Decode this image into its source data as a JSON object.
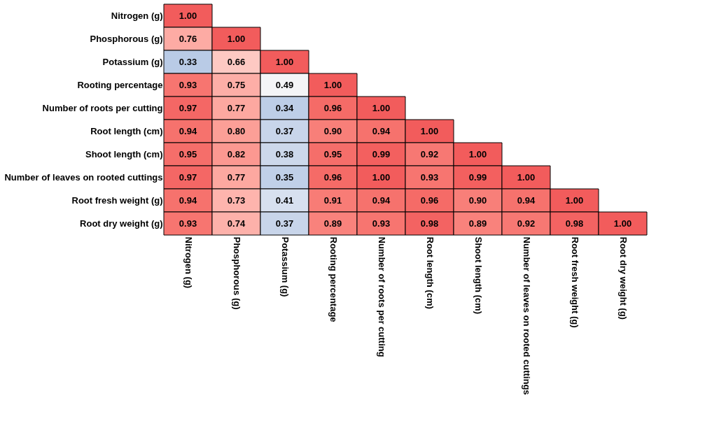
{
  "chart_data": {
    "type": "heatmap",
    "categories": [
      "Nitrogen (g)",
      "Phosphorous (g)",
      "Potassium (g)",
      "Rooting percentage",
      "Number of roots per cutting",
      "Root length (cm)",
      "Shoot length (cm)",
      "Number of leaves on rooted cuttings",
      "Root fresh weight (g)",
      "Root dry weight (g)"
    ],
    "y_categories": [
      "Nitrogen (g)",
      "Phosphorous (g)",
      "Potassium (g)",
      "Rooting percentage",
      "Number of roots per cutting",
      "Root length (cm)",
      "Shoot length (cm)",
      "Number of leaves on rooted cuttings",
      "Root fresh weight (g)",
      "Root dry weight (g)"
    ],
    "cells": [
      [
        1.0,
        null,
        null,
        null,
        null,
        null,
        null,
        null,
        null,
        null
      ],
      [
        0.76,
        1.0,
        null,
        null,
        null,
        null,
        null,
        null,
        null,
        null
      ],
      [
        0.33,
        0.66,
        1.0,
        null,
        null,
        null,
        null,
        null,
        null,
        null
      ],
      [
        0.93,
        0.75,
        0.49,
        1.0,
        null,
        null,
        null,
        null,
        null,
        null
      ],
      [
        0.97,
        0.77,
        0.34,
        0.96,
        1.0,
        null,
        null,
        null,
        null,
        null
      ],
      [
        0.94,
        0.8,
        0.37,
        0.9,
        0.94,
        1.0,
        null,
        null,
        null,
        null
      ],
      [
        0.95,
        0.82,
        0.38,
        0.95,
        0.99,
        0.92,
        1.0,
        null,
        null,
        null
      ],
      [
        0.97,
        0.77,
        0.35,
        0.96,
        1.0,
        0.93,
        0.99,
        1.0,
        null,
        null
      ],
      [
        0.94,
        0.73,
        0.41,
        0.91,
        0.94,
        0.96,
        0.9,
        0.94,
        1.0,
        null
      ],
      [
        0.93,
        0.74,
        0.37,
        0.89,
        0.93,
        0.98,
        0.89,
        0.92,
        0.98,
        1.0
      ]
    ],
    "cell_labels": [
      [
        "1.00",
        null,
        null,
        null,
        null,
        null,
        null,
        null,
        null,
        null
      ],
      [
        "0.76",
        "1.00",
        null,
        null,
        null,
        null,
        null,
        null,
        null,
        null
      ],
      [
        "0.33",
        "0.66",
        "1.00",
        null,
        null,
        null,
        null,
        null,
        null,
        null
      ],
      [
        "0.93",
        "0.75",
        "0.49",
        "1.00",
        null,
        null,
        null,
        null,
        null,
        null
      ],
      [
        "0.97",
        "0.77",
        "0.34",
        "0.96",
        "1.00",
        null,
        null,
        null,
        null,
        null
      ],
      [
        "0.94",
        "0.80",
        "0.37",
        "0.90",
        "0.94",
        "1.00",
        null,
        null,
        null,
        null
      ],
      [
        "0.95",
        "0.82",
        "0.38",
        "0.95",
        "0.99",
        "0.92",
        "1.00",
        null,
        null,
        null
      ],
      [
        "0.97",
        "0.77",
        "0.35",
        "0.96",
        "1.00",
        "0.93",
        "0.99",
        "1.00",
        null,
        null
      ],
      [
        "0.94",
        "0.73",
        "0.41",
        "0.91",
        "0.94",
        "0.96",
        "0.90",
        "0.94",
        "1.00",
        null
      ],
      [
        "0.93",
        "0.74",
        "0.37",
        "0.89",
        "0.93",
        "0.98",
        "0.89",
        "0.92",
        "0.98",
        "1.00"
      ]
    ],
    "grid": false,
    "legend": false
  }
}
